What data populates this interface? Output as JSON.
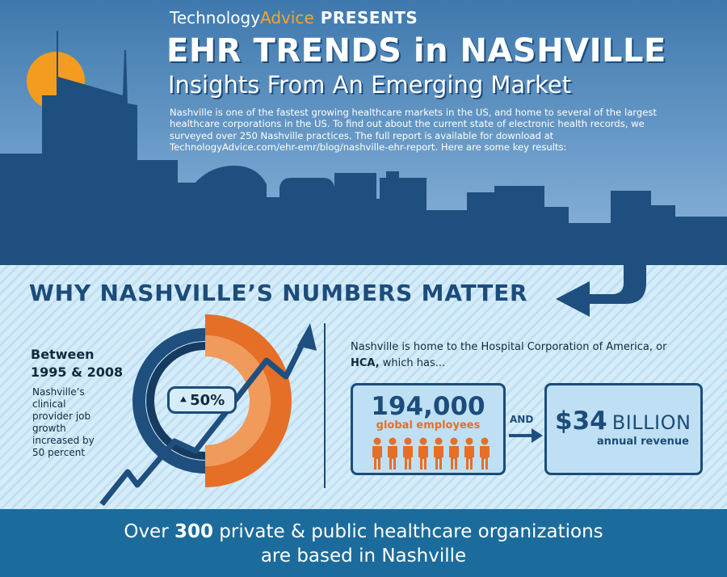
{
  "header": {
    "brand_technology": "Technology",
    "brand_advice": "Advice",
    "presents": "PRESENTS",
    "title": "EHR TRENDS in NASHVILLE",
    "subtitle": "Insights From An Emerging Market",
    "intro": "Nashville is one of the fastest growing healthcare markets in the US, and home to several of the largest healthcare corporations in the US. To find out about the current state of electronic health records, we surveyed over 250 Nashville practices. The full report is available for download at TechnologyAdvice.com/ehr-emr/blog/nashville-ehr-report. Here are some key results:"
  },
  "section": {
    "heading": "WHY NASHVILLE’S NUMBERS MATTER"
  },
  "growth": {
    "between_line1": "Between",
    "between_line2": "1995 & 2008",
    "description": "Nashville’s clinical provider job growth increased by 50 percent",
    "percent_label": "50%",
    "percent_value": 50
  },
  "hca": {
    "intro_prefix": "Nashville is home to the Hospital Corporation of America, or ",
    "intro_bold": "HCA,",
    "intro_suffix": " which has...",
    "employees_value": "194,000",
    "employees_label": "global employees",
    "and_label": "AND",
    "revenue_value": "$34",
    "revenue_unit": "BILLION",
    "revenue_label": "annual revenue",
    "people_icon_count": 8
  },
  "footer": {
    "prefix": "Over ",
    "number": "300",
    "line1_suffix": " private & public healthcare organizations",
    "line2": "are based in Nashville"
  },
  "colors": {
    "navy": "#1c4c7a",
    "orange": "#e56f27",
    "light_orange": "#f09a5c",
    "sun": "#f39c1f",
    "footer_blue": "#1b6c9c"
  },
  "icons": [
    "sun-icon",
    "skyline-graphic",
    "bent-arrow-icon",
    "trend-arrow-icon",
    "person-icon",
    "double-chevron-up-icon",
    "right-arrow-icon"
  ]
}
